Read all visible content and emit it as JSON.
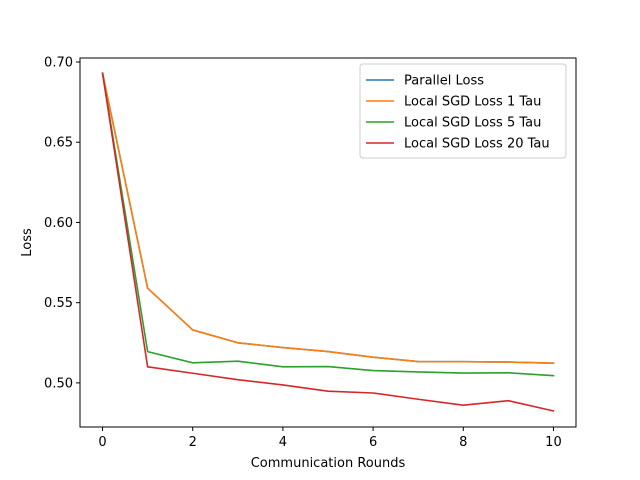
{
  "chart_data": {
    "type": "line",
    "title": "",
    "xlabel": "Communication Rounds",
    "ylabel": "Loss",
    "x": [
      0,
      1,
      2,
      3,
      4,
      5,
      6,
      7,
      8,
      9,
      10
    ],
    "xlim": [
      -0.5,
      10.5
    ],
    "ylim": [
      0.4725,
      0.7025
    ],
    "xticks": [
      0,
      2,
      4,
      6,
      8,
      10
    ],
    "yticks": [
      0.5,
      0.55,
      0.6,
      0.65,
      0.7
    ],
    "ytick_labels": [
      "0.50",
      "0.55",
      "0.60",
      "0.65",
      "0.70"
    ],
    "grid": false,
    "legend_position": "top-right",
    "series": [
      {
        "name": "Parallel Loss",
        "color": "#1f77b4",
        "values": [
          0.693,
          0.559,
          0.533,
          0.525,
          0.522,
          0.5195,
          0.516,
          0.5133,
          0.5132,
          0.513,
          0.5123
        ]
      },
      {
        "name": "Local SGD Loss 1 Tau",
        "color": "#ff7f0e",
        "values": [
          0.693,
          0.559,
          0.533,
          0.525,
          0.522,
          0.5195,
          0.516,
          0.5133,
          0.5132,
          0.513,
          0.5123
        ]
      },
      {
        "name": "Local SGD Loss 5 Tau",
        "color": "#2ca02c",
        "values": [
          0.693,
          0.5195,
          0.5125,
          0.5135,
          0.51,
          0.5102,
          0.5077,
          0.5068,
          0.5061,
          0.5063,
          0.5045
        ]
      },
      {
        "name": "Local SGD Loss 20 Tau",
        "color": "#d62728",
        "values": [
          0.693,
          0.51,
          0.506,
          0.502,
          0.4987,
          0.4948,
          0.4937,
          0.4898,
          0.4861,
          0.4889,
          0.4825
        ]
      }
    ]
  }
}
